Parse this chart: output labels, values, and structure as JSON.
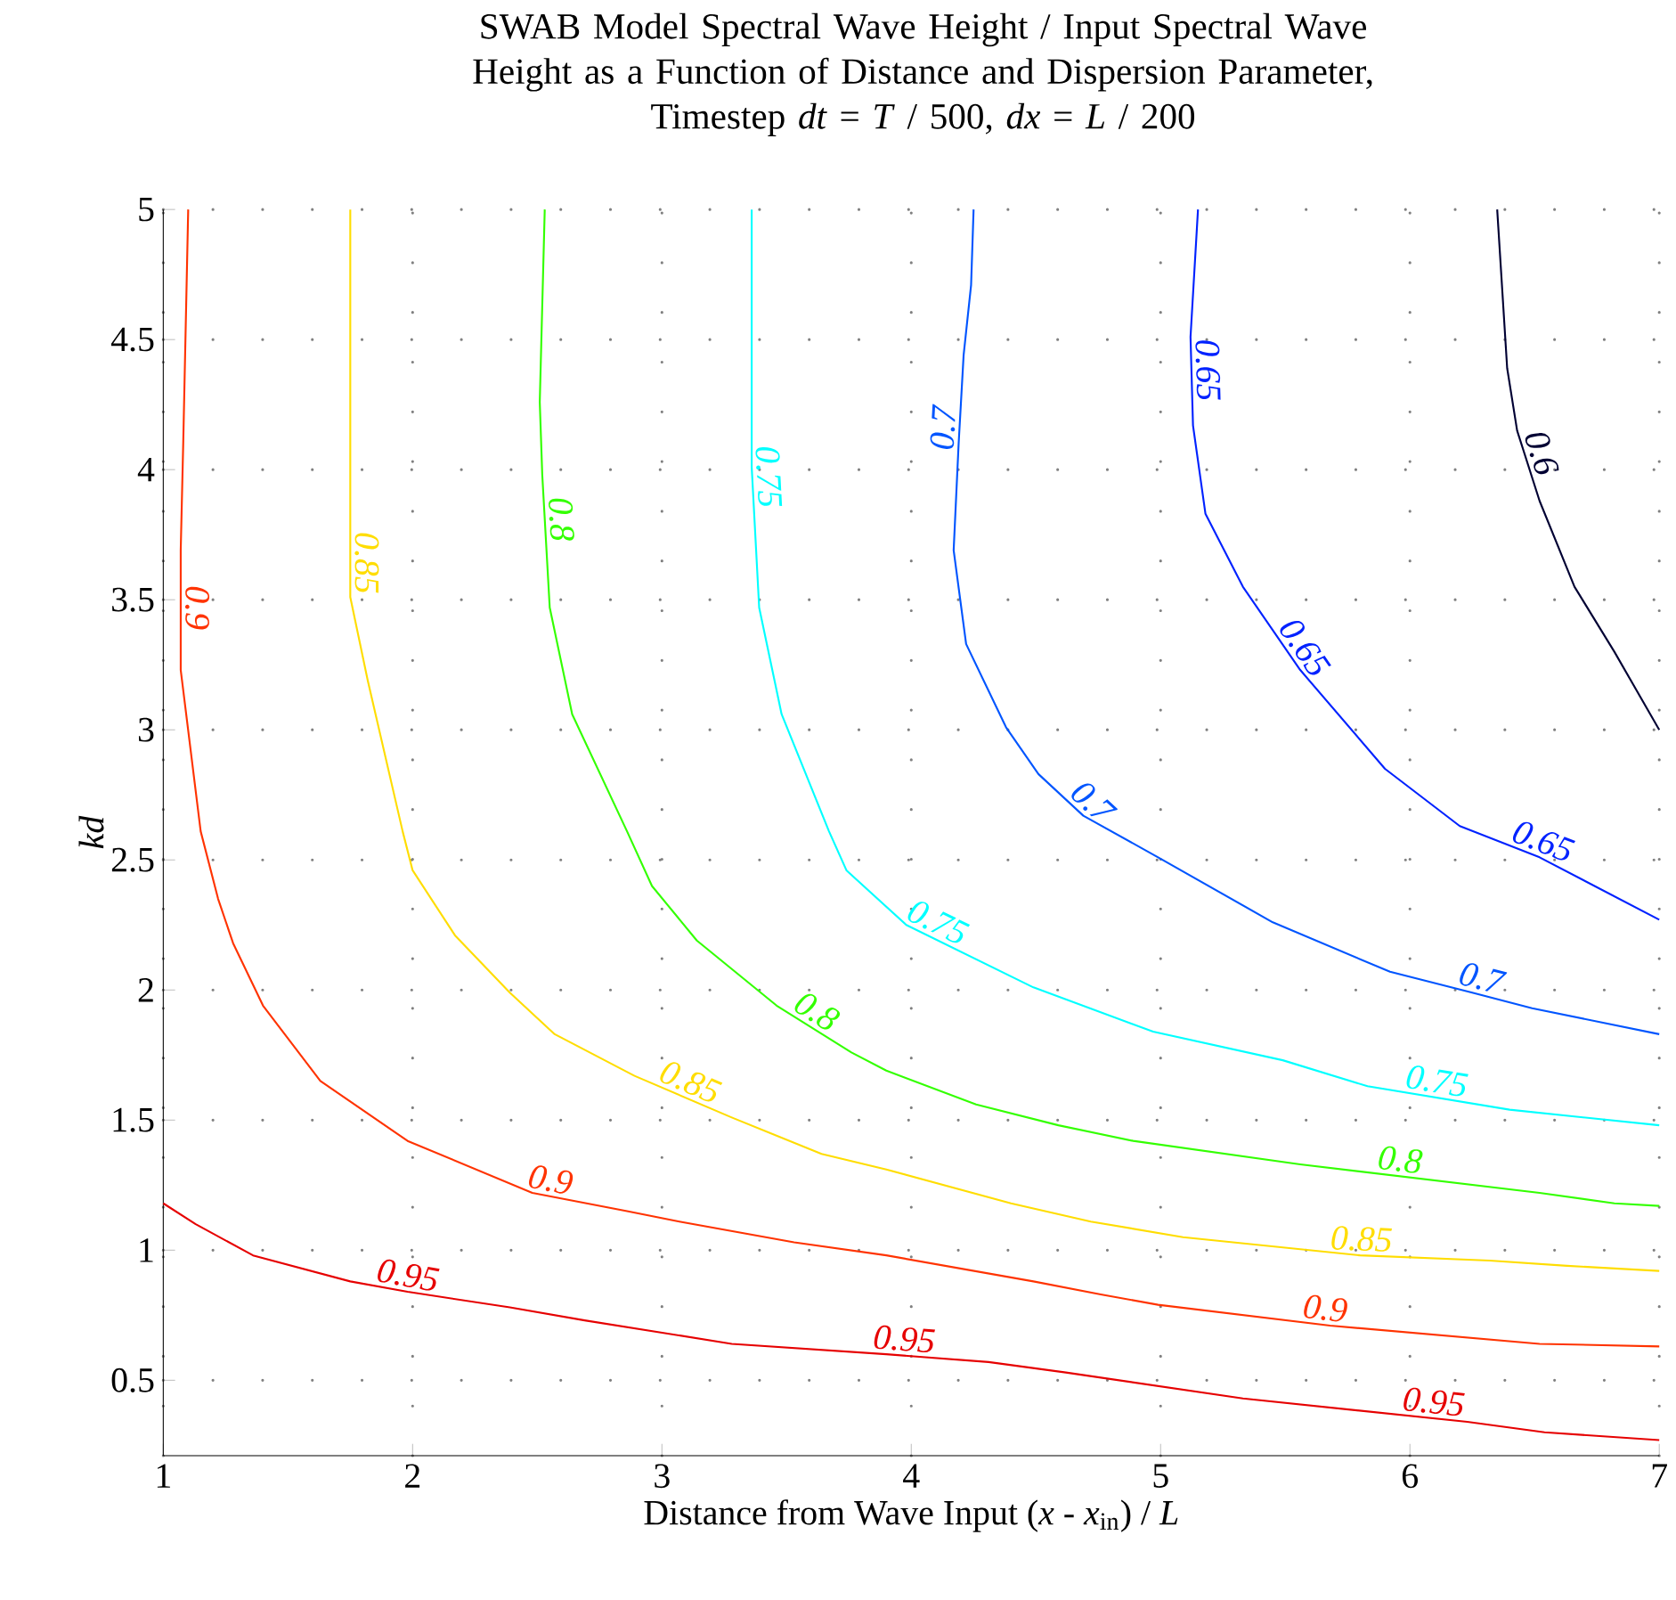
{
  "chart_data": {
    "type": "line",
    "title": "SWAB Model Spectral Wave Height / Input Spectral Wave Height as a Function of Distance and Dispersion Parameter,",
    "subtitle": "Timestep *dt* = *T* / 500,  *dx* = *L* / 200",
    "xlabel": "Distance from Wave Input (*x* - *x*$_{in}$) / *L*",
    "ylabel": "kd",
    "xlim": [
      1,
      7
    ],
    "ylim": [
      0.21,
      5
    ],
    "xticks": [
      1,
      2,
      3,
      4,
      5,
      6,
      7
    ],
    "yticks": [
      0.5,
      1,
      1.5,
      2,
      2.5,
      3,
      3.5,
      4,
      4.5,
      5
    ],
    "grid": true,
    "line_style": "solid",
    "marker": "none",
    "series": [
      {
        "name": "0.95",
        "color": "#e60000",
        "x": [
          1.0,
          1.13,
          1.36,
          1.75,
          1.98,
          2.39,
          2.69,
          3.28,
          3.9,
          4.31,
          4.62,
          5.33,
          6.23,
          6.54,
          7.0
        ],
        "values": [
          1.18,
          1.1,
          0.98,
          0.88,
          0.84,
          0.78,
          0.73,
          0.64,
          0.6,
          0.57,
          0.53,
          0.43,
          0.34,
          0.3,
          0.27
        ]
      },
      {
        "name": "0.9",
        "color": "#ff3300",
        "x": [
          1.1,
          1.08,
          1.07,
          1.07,
          1.15,
          1.22,
          1.28,
          1.4,
          1.63,
          1.98,
          2.48,
          2.86,
          3.07,
          3.53,
          3.9,
          4.49,
          4.76,
          4.99,
          5.68,
          6.52,
          7.0
        ],
        "values": [
          5.0,
          4.1,
          3.69,
          3.23,
          2.61,
          2.35,
          2.18,
          1.94,
          1.65,
          1.42,
          1.22,
          1.15,
          1.11,
          1.03,
          0.98,
          0.88,
          0.83,
          0.79,
          0.71,
          0.64,
          0.63
        ]
      },
      {
        "name": "0.85",
        "color": "#ffdd00",
        "x": [
          1.75,
          1.75,
          1.82,
          1.96,
          2.0,
          2.17,
          2.39,
          2.57,
          2.89,
          3.28,
          3.64,
          3.9,
          4.4,
          4.72,
          5.09,
          5.8,
          6.32,
          6.63,
          7.0
        ],
        "values": [
          5.0,
          3.51,
          3.19,
          2.61,
          2.46,
          2.21,
          1.99,
          1.83,
          1.67,
          1.51,
          1.37,
          1.31,
          1.18,
          1.11,
          1.05,
          0.98,
          0.96,
          0.94,
          0.92
        ]
      },
      {
        "name": "0.8",
        "color": "#33ff00",
        "x": [
          2.53,
          2.51,
          2.52,
          2.55,
          2.64,
          2.86,
          2.96,
          3.14,
          3.46,
          3.76,
          3.9,
          4.26,
          4.59,
          4.89,
          5.56,
          6.52,
          6.82,
          7.0
        ],
        "values": [
          5.0,
          4.26,
          3.98,
          3.47,
          3.06,
          2.61,
          2.4,
          2.19,
          1.94,
          1.76,
          1.69,
          1.56,
          1.48,
          1.42,
          1.33,
          1.22,
          1.18,
          1.17
        ]
      },
      {
        "name": "0.75",
        "color": "#00ffff",
        "x": [
          3.36,
          3.36,
          3.39,
          3.48,
          3.67,
          3.74,
          3.98,
          4.49,
          4.97,
          5.49,
          5.83,
          6.4,
          7.0
        ],
        "values": [
          5.0,
          4.01,
          3.47,
          3.06,
          2.61,
          2.46,
          2.25,
          2.01,
          1.84,
          1.73,
          1.63,
          1.54,
          1.48
        ]
      },
      {
        "name": "0.7",
        "color": "#0055ff",
        "x": [
          4.25,
          4.24,
          4.21,
          4.19,
          4.17,
          4.22,
          4.38,
          4.51,
          4.69,
          4.99,
          5.45,
          5.92,
          6.25,
          6.49,
          7.0
        ],
        "values": [
          5.0,
          4.71,
          4.44,
          4.1,
          3.69,
          3.33,
          3.01,
          2.83,
          2.67,
          2.51,
          2.26,
          2.07,
          1.99,
          1.93,
          1.83
        ]
      },
      {
        "name": "0.65",
        "color": "#0022ff",
        "x": [
          5.15,
          5.12,
          5.13,
          5.18,
          5.33,
          5.56,
          5.9,
          6.2,
          6.52,
          7.0
        ],
        "values": [
          5.0,
          4.51,
          4.17,
          3.83,
          3.55,
          3.23,
          2.85,
          2.63,
          2.51,
          2.27
        ]
      },
      {
        "name": "0.6",
        "color": "#000033",
        "x": [
          6.35,
          6.39,
          6.43,
          6.52,
          6.66,
          6.82,
          7.0
        ],
        "values": [
          5.0,
          4.39,
          4.15,
          3.88,
          3.55,
          3.3,
          3.0
        ]
      }
    ]
  }
}
